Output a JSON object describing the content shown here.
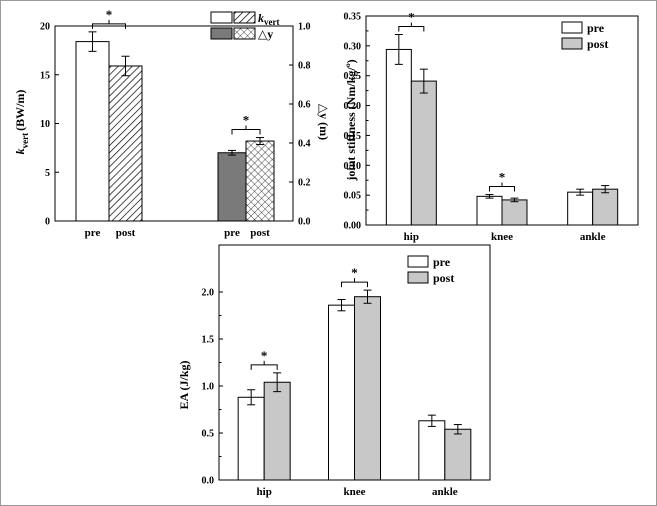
{
  "colors": {
    "white_bar": "#ffffff",
    "gray_bar": "#c8c8c8",
    "dark_bar": "#7a7a7a",
    "stroke": "#000000"
  },
  "chart_data": [
    {
      "id": "chart1",
      "type": "bar",
      "panels": [
        {
          "axis": "left",
          "ylabel": "k_vert (BW/m)",
          "ylabel_main": "k",
          "ylabel_sub": "vert",
          "ylabel_unit": "(BW/m)",
          "ylim": [
            0,
            20
          ],
          "yticks": [
            "0",
            "5",
            "10",
            "15",
            "20"
          ],
          "categories": [
            "pre",
            "post"
          ],
          "series": [
            {
              "name": "k_vert",
              "fills": [
                "white",
                "hatch"
              ],
              "values": [
                18.4,
                15.9
              ],
              "errors": [
                1.0,
                1.0
              ]
            }
          ],
          "significance": [
            {
              "between": [
                "pre",
                "post"
              ],
              "symbol": "*"
            }
          ]
        },
        {
          "axis": "right",
          "ylabel": "△y (m)",
          "ylabel_main": "△y",
          "ylabel_unit": "(m)",
          "ylim": [
            0,
            1.0
          ],
          "yticks": [
            "0.0",
            "0.2",
            "0.4",
            "0.6",
            "0.8",
            "1.0"
          ],
          "categories": [
            "pre",
            "post"
          ],
          "series": [
            {
              "name": "△y",
              "fills": [
                "dark",
                "crosshatch"
              ],
              "values": [
                0.35,
                0.41
              ],
              "errors": [
                0.012,
                0.018
              ]
            }
          ],
          "significance": [
            {
              "between": [
                "pre",
                "post"
              ],
              "symbol": "*"
            }
          ]
        }
      ],
      "legend": [
        {
          "label_main": "k",
          "label_sub": "vert",
          "swatches": [
            "white",
            "hatch"
          ]
        },
        {
          "label_main": "△y",
          "swatches": [
            "dark",
            "crosshatch"
          ]
        }
      ],
      "legend_position": "top-right"
    },
    {
      "id": "chart2",
      "type": "bar",
      "title": "",
      "ylabel": "joint stiffness (Nm/kg/º)",
      "ylim": [
        0,
        0.35
      ],
      "yticks": [
        "0.00",
        "0.05",
        "0.10",
        "0.15",
        "0.20",
        "0.25",
        "0.30",
        "0.35"
      ],
      "categories": [
        "hip",
        "knee",
        "ankle"
      ],
      "series": [
        {
          "name": "pre",
          "values": [
            0.294,
            0.048,
            0.055
          ],
          "errors": [
            0.025,
            0.003,
            0.005
          ]
        },
        {
          "name": "post",
          "values": [
            0.241,
            0.042,
            0.06
          ],
          "errors": [
            0.02,
            0.003,
            0.006
          ]
        }
      ],
      "significance": [
        {
          "category": "hip",
          "symbol": "*"
        },
        {
          "category": "knee",
          "symbol": "*"
        }
      ],
      "legend_position": "top-right"
    },
    {
      "id": "chart3",
      "type": "bar",
      "title": "",
      "ylabel": "EA (J/kg)",
      "ylim": [
        0,
        2.5
      ],
      "yticks": [
        "0.0",
        "0.5",
        "1.0",
        "1.5",
        "2.0"
      ],
      "categories": [
        "hip",
        "knee",
        "ankle"
      ],
      "series": [
        {
          "name": "pre",
          "values": [
            0.88,
            1.86,
            0.63
          ],
          "errors": [
            0.08,
            0.06,
            0.06
          ]
        },
        {
          "name": "post",
          "values": [
            1.04,
            1.95,
            0.54
          ],
          "errors": [
            0.1,
            0.07,
            0.05
          ]
        }
      ],
      "significance": [
        {
          "category": "hip",
          "symbol": "*"
        },
        {
          "category": "knee",
          "symbol": "*"
        }
      ],
      "legend_position": "top-left"
    }
  ]
}
